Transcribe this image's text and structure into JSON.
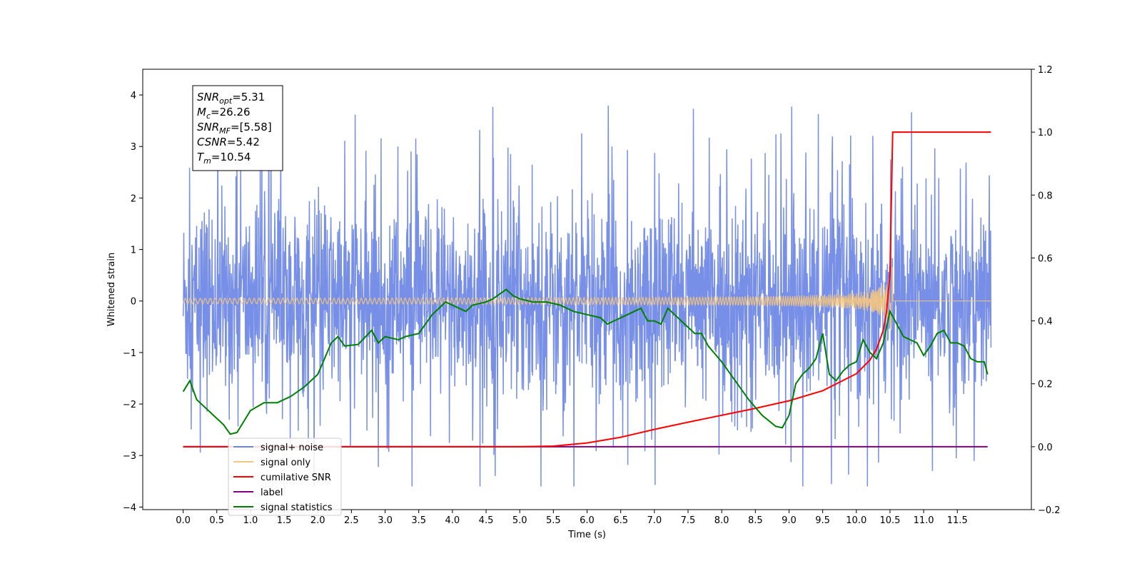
{
  "chart_data": {
    "type": "line",
    "xlabel": "Time (s)",
    "ylabel": "Whitened strain",
    "xlim": [
      -0.6,
      12.6
    ],
    "ylim": [
      -4.05,
      4.5
    ],
    "y2lim": [
      -0.2,
      1.2
    ],
    "x_ticks": [
      "0.0",
      "0.5",
      "1.0",
      "1.5",
      "2.0",
      "2.5",
      "3.0",
      "3.5",
      "4.0",
      "4.5",
      "5.0",
      "5.5",
      "6.0",
      "6.5",
      "7.0",
      "7.5",
      "8.0",
      "8.5",
      "9.0",
      "9.5",
      "10.0",
      "10.5",
      "11.0",
      "11.5"
    ],
    "y_ticks": [
      "−4",
      "−3",
      "−2",
      "−1",
      "0",
      "1",
      "2",
      "3",
      "4"
    ],
    "y2_ticks": [
      "−0.2",
      "0.0",
      "0.2",
      "0.4",
      "0.6",
      "0.8",
      "1.0",
      "1.2"
    ],
    "info_box": [
      {
        "var": "SNR",
        "sub": "opt",
        "value": "=5.31"
      },
      {
        "var": "M",
        "sub": "c",
        "value": "=26.26"
      },
      {
        "var": "SNR",
        "sub": "MF",
        "value": "=[5.58]"
      },
      {
        "var": "CSNR",
        "sub": "",
        "value": "=5.42"
      },
      {
        "var": "T",
        "sub": "m",
        "value": "=10.54"
      }
    ],
    "merger_time": 10.54,
    "series": [
      {
        "name": "signal+ noise",
        "color": "#6b86e4",
        "axis": "left",
        "description_range": [
          -3.6,
          3.9
        ]
      },
      {
        "name": "signal only",
        "color": "#f5c77e",
        "axis": "left"
      },
      {
        "name": "cumilative SNR",
        "color": "#ff0000",
        "axis": "right",
        "x": [
          0,
          5.0,
          5.5,
          6.0,
          6.5,
          7.0,
          7.5,
          8.0,
          8.5,
          9.0,
          9.5,
          10.0,
          10.2,
          10.3,
          10.4,
          10.45,
          10.5,
          10.54,
          12.0
        ],
        "values": [
          0,
          0,
          0.002,
          0.012,
          0.03,
          0.055,
          0.078,
          0.1,
          0.122,
          0.146,
          0.178,
          0.232,
          0.275,
          0.31,
          0.37,
          0.43,
          0.55,
          1.0,
          1.0
        ]
      },
      {
        "name": "label",
        "color": "#800080",
        "axis": "right",
        "x": [
          0,
          11.95
        ],
        "values": [
          0,
          0
        ]
      },
      {
        "name": "signal statistics",
        "color": "#008000",
        "axis": "right",
        "x": [
          0,
          0.1,
          0.2,
          0.4,
          0.6,
          0.7,
          0.8,
          0.9,
          1.0,
          1.2,
          1.4,
          1.6,
          1.8,
          2.0,
          2.1,
          2.2,
          2.3,
          2.4,
          2.6,
          2.8,
          2.9,
          3.0,
          3.1,
          3.2,
          3.3,
          3.5,
          3.6,
          3.7,
          3.9,
          4.0,
          4.1,
          4.2,
          4.3,
          4.5,
          4.6,
          4.8,
          4.9,
          5.0,
          5.2,
          5.4,
          5.6,
          5.8,
          6.0,
          6.2,
          6.3,
          6.4,
          6.6,
          6.8,
          6.9,
          7.0,
          7.1,
          7.2,
          7.4,
          7.6,
          7.7,
          7.8,
          8.0,
          8.2,
          8.4,
          8.6,
          8.8,
          8.9,
          9.0,
          9.1,
          9.2,
          9.3,
          9.4,
          9.5,
          9.6,
          9.7,
          9.8,
          9.9,
          10.0,
          10.1,
          10.2,
          10.3,
          10.4,
          10.5,
          10.6,
          10.7,
          10.8,
          10.9,
          11.0,
          11.1,
          11.2,
          11.3,
          11.4,
          11.5,
          11.6,
          11.7,
          11.8,
          11.9,
          11.95
        ],
        "values": [
          0.175,
          0.21,
          0.15,
          0.11,
          0.07,
          0.04,
          0.045,
          0.08,
          0.115,
          0.14,
          0.14,
          0.16,
          0.19,
          0.23,
          0.28,
          0.33,
          0.35,
          0.32,
          0.325,
          0.37,
          0.33,
          0.35,
          0.345,
          0.34,
          0.35,
          0.36,
          0.39,
          0.42,
          0.46,
          0.45,
          0.44,
          0.43,
          0.45,
          0.46,
          0.47,
          0.5,
          0.48,
          0.47,
          0.46,
          0.46,
          0.45,
          0.43,
          0.42,
          0.41,
          0.39,
          0.4,
          0.42,
          0.44,
          0.4,
          0.4,
          0.39,
          0.44,
          0.4,
          0.36,
          0.36,
          0.32,
          0.27,
          0.21,
          0.15,
          0.1,
          0.065,
          0.06,
          0.1,
          0.2,
          0.23,
          0.25,
          0.28,
          0.36,
          0.23,
          0.21,
          0.24,
          0.26,
          0.27,
          0.34,
          0.3,
          0.28,
          0.33,
          0.43,
          0.39,
          0.35,
          0.34,
          0.33,
          0.29,
          0.32,
          0.36,
          0.37,
          0.33,
          0.33,
          0.32,
          0.28,
          0.27,
          0.27,
          0.23
        ]
      }
    ],
    "legend_placement": "lower-left"
  }
}
